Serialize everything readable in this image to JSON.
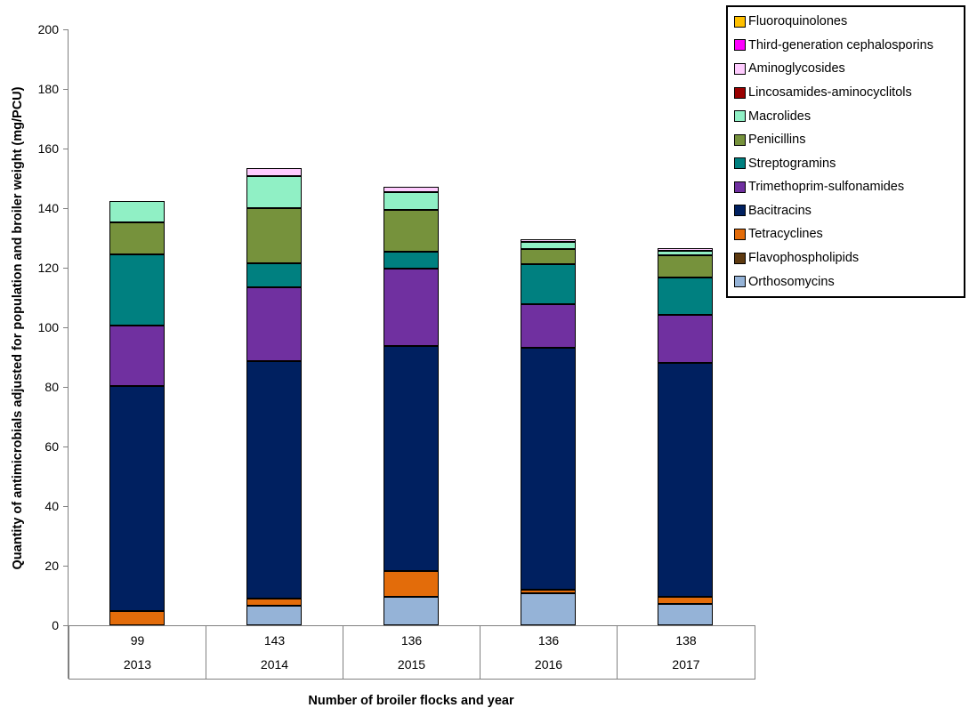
{
  "chart_data": {
    "type": "bar",
    "stacked": true,
    "title": "",
    "xlabel": "Number of broiler flocks and year",
    "ylabel": "Quantity of antimicrobials adjusted for population and broiler weight (mg/PCU)",
    "ylim": [
      0,
      200
    ],
    "y_tick_step": 20,
    "y_tick_labels": [
      "0",
      "20",
      "40",
      "60",
      "80",
      "100",
      "120",
      "140",
      "160",
      "180",
      "200"
    ],
    "grid": false,
    "legend_position": "top-right",
    "categories_flocks": [
      "99",
      "143",
      "136",
      "136",
      "138"
    ],
    "categories_years": [
      "2013",
      "2014",
      "2015",
      "2016",
      "2017"
    ],
    "series_bottom_to_top": [
      {
        "name": "Orthosomycins",
        "color": "#95B3D7",
        "values": [
          0,
          6.7,
          9.7,
          10.9,
          7.3
        ]
      },
      {
        "name": "Flavophospholipids",
        "color": "#5E3A10",
        "values": [
          0,
          0,
          0,
          0,
          0
        ]
      },
      {
        "name": "Tetracyclines",
        "color": "#E36C0A",
        "values": [
          4.7,
          2.4,
          8.4,
          1.0,
          2.4
        ]
      },
      {
        "name": "Bacitracins",
        "color": "#002060",
        "values": [
          75.7,
          79.6,
          75.5,
          81.3,
          78.3
        ]
      },
      {
        "name": "Trimethoprim-sulfonamides",
        "color": "#7030A0",
        "values": [
          20.3,
          24.8,
          26.0,
          14.6,
          16.2
        ]
      },
      {
        "name": "Streptogramins",
        "color": "#008080",
        "values": [
          23.7,
          7.9,
          5.9,
          13.3,
          12.5
        ]
      },
      {
        "name": "Penicillins",
        "color": "#76923C",
        "values": [
          10.9,
          18.7,
          14.0,
          5.3,
          7.5
        ]
      },
      {
        "name": "Macrolides",
        "color": "#90F0C5",
        "values": [
          7.0,
          10.8,
          5.8,
          2.4,
          1.4
        ]
      },
      {
        "name": "Lincosamides-aminocyclitols",
        "color": "#990000",
        "values": [
          0,
          0,
          0,
          0,
          0
        ]
      },
      {
        "name": "Aminoglycosides",
        "color": "#FFCCFF",
        "values": [
          0,
          2.5,
          1.8,
          0.9,
          0.9
        ]
      },
      {
        "name": "Third-generation cephalosporins",
        "color": "#FF00FF",
        "values": [
          0,
          0,
          0,
          0,
          0
        ]
      },
      {
        "name": "Fluoroquinolones",
        "color": "#FFC000",
        "values": [
          0,
          0,
          0,
          0,
          0
        ]
      }
    ],
    "legend_top_to_bottom": [
      "Fluoroquinolones",
      "Third-generation cephalosporins",
      "Aminoglycosides",
      "Lincosamides-aminocyclitols",
      "Macrolides",
      "Penicillins",
      "Streptogramins",
      "Trimethoprim-sulfonamides",
      "Bacitracins",
      "Tetracyclines",
      "Flavophospholipids",
      "Orthosomycins"
    ]
  }
}
